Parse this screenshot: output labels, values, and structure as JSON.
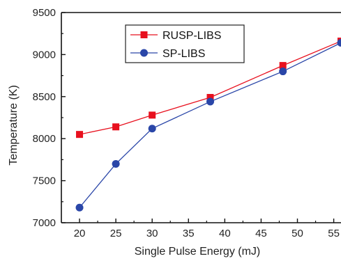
{
  "chart_data": {
    "type": "line",
    "title": "",
    "xlabel": "Single Pulse Energy (mJ)",
    "ylabel": "Temperature (K)",
    "xlim": [
      17.5,
      56
    ],
    "ylim": [
      7000,
      9500
    ],
    "x_ticks": [
      20,
      25,
      30,
      35,
      40,
      45,
      50,
      55
    ],
    "y_ticks": [
      7000,
      7500,
      8000,
      8500,
      9000,
      9500
    ],
    "grid": false,
    "legend_position": "top-left",
    "series": [
      {
        "name": "RUSP-LIBS",
        "color": "#e8101e",
        "marker": "square",
        "x": [
          20,
          25,
          30,
          38,
          48,
          56
        ],
        "y": [
          8050,
          8140,
          8280,
          8490,
          8870,
          9160
        ]
      },
      {
        "name": "SP-LIBS",
        "color": "#2a46a8",
        "marker": "circle",
        "x": [
          20,
          25,
          30,
          38,
          48,
          56
        ],
        "y": [
          7180,
          7700,
          8120,
          8440,
          8800,
          9140
        ]
      }
    ]
  }
}
